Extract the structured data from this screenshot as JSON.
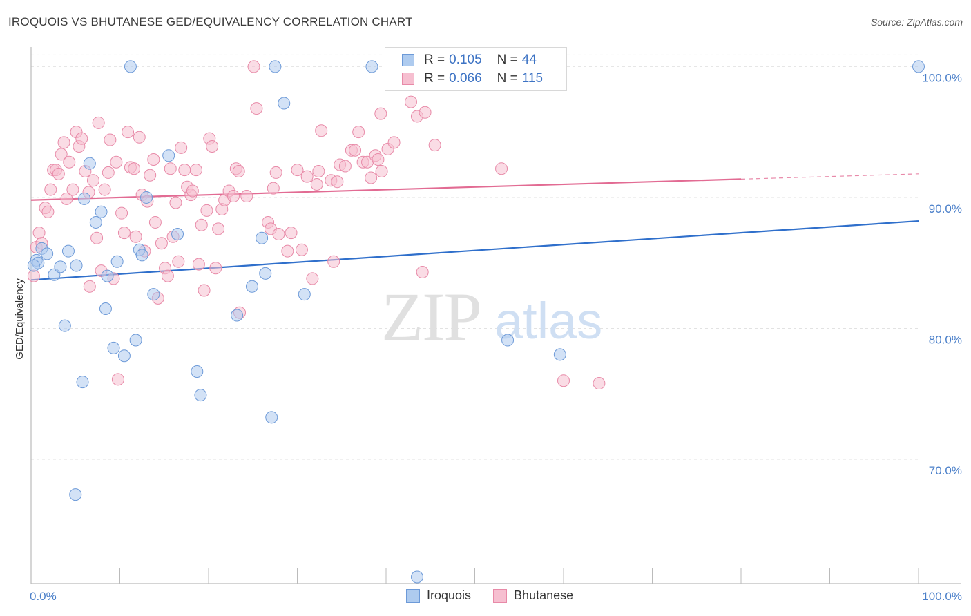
{
  "header": {
    "title": "IROQUOIS VS BHUTANESE GED/EQUIVALENCY CORRELATION CHART",
    "source": "Source: ZipAtlas.com"
  },
  "watermark": {
    "zip": "ZIP",
    "atlas": "atlas"
  },
  "legend": {
    "rows": [
      {
        "r_label": "R =",
        "r_value": "0.105",
        "n_label": "N =",
        "n_value": "44"
      },
      {
        "r_label": "R =",
        "r_value": "0.066",
        "n_label": "N =",
        "n_value": "115"
      }
    ]
  },
  "bottom_legend": {
    "items": [
      "Iroquois",
      "Bhutanese"
    ]
  },
  "colors": {
    "iroquois_fill": "#aecbef",
    "iroquois_stroke": "#6d9ad8",
    "iroquois_line": "#2f6fcb",
    "bhutanese_fill": "#f6bfd0",
    "bhutanese_stroke": "#e88aa8",
    "bhutanese_line": "#e26b93",
    "tick_text": "#4a7fc9",
    "grid": "#e2e2e2"
  },
  "chart_data": {
    "type": "scatter",
    "title": "IROQUOIS VS BHUTANESE GED/EQUIVALENCY CORRELATION CHART",
    "xlabel": "",
    "ylabel": "GED/Equivalency",
    "xlim": [
      0,
      100
    ],
    "ylim": [
      60.5,
      101.5
    ],
    "x_tick_labels": [
      "0.0%",
      "100.0%"
    ],
    "y_ticks": [
      70,
      80,
      90,
      100
    ],
    "y_tick_labels": [
      "70.0%",
      "80.0%",
      "90.0%",
      "100.0%"
    ],
    "legend_position": "top-center",
    "series": [
      {
        "name": "Iroquois",
        "r": 0.105,
        "n": 44,
        "trend": {
          "x": [
            0,
            100
          ],
          "y": [
            83.7,
            88.2
          ]
        },
        "points": [
          {
            "x": 0.6,
            "y": 85.2
          },
          {
            "x": 0.8,
            "y": 85.0
          },
          {
            "x": 1.2,
            "y": 86.1
          },
          {
            "x": 1.8,
            "y": 85.7
          },
          {
            "x": 2.6,
            "y": 84.1
          },
          {
            "x": 3.3,
            "y": 84.7
          },
          {
            "x": 3.8,
            "y": 80.2
          },
          {
            "x": 4.2,
            "y": 85.9
          },
          {
            "x": 5.1,
            "y": 84.8
          },
          {
            "x": 5.0,
            "y": 67.3
          },
          {
            "x": 5.8,
            "y": 75.9
          },
          {
            "x": 6.0,
            "y": 89.9
          },
          {
            "x": 6.6,
            "y": 92.6
          },
          {
            "x": 7.3,
            "y": 88.1
          },
          {
            "x": 7.9,
            "y": 88.9
          },
          {
            "x": 8.4,
            "y": 81.5
          },
          {
            "x": 8.6,
            "y": 84.0
          },
          {
            "x": 9.3,
            "y": 78.5
          },
          {
            "x": 9.7,
            "y": 85.1
          },
          {
            "x": 10.5,
            "y": 77.9
          },
          {
            "x": 11.2,
            "y": 100.0
          },
          {
            "x": 11.8,
            "y": 79.1
          },
          {
            "x": 12.2,
            "y": 86.0
          },
          {
            "x": 12.5,
            "y": 85.6
          },
          {
            "x": 13.0,
            "y": 90.0
          },
          {
            "x": 13.8,
            "y": 82.6
          },
          {
            "x": 15.5,
            "y": 93.2
          },
          {
            "x": 16.5,
            "y": 87.2
          },
          {
            "x": 18.7,
            "y": 76.7
          },
          {
            "x": 19.1,
            "y": 74.9
          },
          {
            "x": 23.2,
            "y": 81.0
          },
          {
            "x": 24.9,
            "y": 83.2
          },
          {
            "x": 26.0,
            "y": 86.9
          },
          {
            "x": 26.4,
            "y": 84.2
          },
          {
            "x": 27.1,
            "y": 73.2
          },
          {
            "x": 27.5,
            "y": 100.0
          },
          {
            "x": 28.5,
            "y": 97.2
          },
          {
            "x": 30.8,
            "y": 82.6
          },
          {
            "x": 38.4,
            "y": 100.0
          },
          {
            "x": 43.5,
            "y": 61.0
          },
          {
            "x": 53.7,
            "y": 79.1
          },
          {
            "x": 59.6,
            "y": 78.0
          },
          {
            "x": 100.0,
            "y": 100.0
          },
          {
            "x": 0.3,
            "y": 84.8
          }
        ]
      },
      {
        "name": "Bhutanese",
        "r": 0.066,
        "n": 115,
        "trend": {
          "x": [
            0,
            80
          ],
          "y": [
            89.8,
            91.4
          ]
        },
        "trend_dashed": {
          "x": [
            80,
            100
          ],
          "y": [
            91.4,
            91.8
          ]
        },
        "points": [
          {
            "x": 0.3,
            "y": 84.0
          },
          {
            "x": 0.6,
            "y": 86.2
          },
          {
            "x": 0.9,
            "y": 87.3
          },
          {
            "x": 1.2,
            "y": 86.5
          },
          {
            "x": 1.6,
            "y": 89.2
          },
          {
            "x": 1.9,
            "y": 88.9
          },
          {
            "x": 2.2,
            "y": 90.6
          },
          {
            "x": 2.5,
            "y": 92.1
          },
          {
            "x": 2.8,
            "y": 92.1
          },
          {
            "x": 3.1,
            "y": 91.8
          },
          {
            "x": 3.4,
            "y": 93.3
          },
          {
            "x": 3.7,
            "y": 94.2
          },
          {
            "x": 4.0,
            "y": 89.9
          },
          {
            "x": 4.3,
            "y": 92.7
          },
          {
            "x": 4.7,
            "y": 90.6
          },
          {
            "x": 5.1,
            "y": 95.0
          },
          {
            "x": 5.4,
            "y": 93.9
          },
          {
            "x": 5.7,
            "y": 94.5
          },
          {
            "x": 6.1,
            "y": 92.0
          },
          {
            "x": 6.5,
            "y": 90.4
          },
          {
            "x": 6.6,
            "y": 83.2
          },
          {
            "x": 7.0,
            "y": 91.3
          },
          {
            "x": 7.4,
            "y": 86.9
          },
          {
            "x": 7.6,
            "y": 95.7
          },
          {
            "x": 7.9,
            "y": 84.4
          },
          {
            "x": 8.3,
            "y": 90.6
          },
          {
            "x": 8.7,
            "y": 91.9
          },
          {
            "x": 8.9,
            "y": 94.4
          },
          {
            "x": 9.3,
            "y": 83.8
          },
          {
            "x": 9.6,
            "y": 92.7
          },
          {
            "x": 9.8,
            "y": 76.1
          },
          {
            "x": 10.2,
            "y": 88.8
          },
          {
            "x": 10.5,
            "y": 87.3
          },
          {
            "x": 10.9,
            "y": 95.0
          },
          {
            "x": 11.2,
            "y": 92.3
          },
          {
            "x": 11.6,
            "y": 92.2
          },
          {
            "x": 11.8,
            "y": 87.0
          },
          {
            "x": 12.2,
            "y": 94.6
          },
          {
            "x": 12.5,
            "y": 90.2
          },
          {
            "x": 12.8,
            "y": 85.9
          },
          {
            "x": 13.1,
            "y": 89.7
          },
          {
            "x": 13.4,
            "y": 91.7
          },
          {
            "x": 13.8,
            "y": 92.9
          },
          {
            "x": 14.0,
            "y": 88.1
          },
          {
            "x": 14.3,
            "y": 82.3
          },
          {
            "x": 14.7,
            "y": 86.5
          },
          {
            "x": 15.1,
            "y": 84.6
          },
          {
            "x": 15.4,
            "y": 84.0
          },
          {
            "x": 15.7,
            "y": 92.2
          },
          {
            "x": 16.0,
            "y": 87.0
          },
          {
            "x": 16.3,
            "y": 89.6
          },
          {
            "x": 16.6,
            "y": 85.1
          },
          {
            "x": 16.9,
            "y": 93.8
          },
          {
            "x": 17.3,
            "y": 92.1
          },
          {
            "x": 17.6,
            "y": 90.8
          },
          {
            "x": 18.0,
            "y": 90.2
          },
          {
            "x": 18.2,
            "y": 90.5
          },
          {
            "x": 18.6,
            "y": 92.1
          },
          {
            "x": 18.9,
            "y": 84.9
          },
          {
            "x": 19.2,
            "y": 87.9
          },
          {
            "x": 19.5,
            "y": 82.9
          },
          {
            "x": 19.8,
            "y": 89.0
          },
          {
            "x": 20.1,
            "y": 94.5
          },
          {
            "x": 20.4,
            "y": 93.9
          },
          {
            "x": 20.8,
            "y": 84.6
          },
          {
            "x": 21.1,
            "y": 87.6
          },
          {
            "x": 21.5,
            "y": 89.1
          },
          {
            "x": 21.8,
            "y": 89.8
          },
          {
            "x": 22.3,
            "y": 90.5
          },
          {
            "x": 22.8,
            "y": 90.1
          },
          {
            "x": 23.1,
            "y": 92.2
          },
          {
            "x": 23.4,
            "y": 92.0
          },
          {
            "x": 23.5,
            "y": 81.2
          },
          {
            "x": 24.3,
            "y": 90.1
          },
          {
            "x": 25.1,
            "y": 100.0
          },
          {
            "x": 25.4,
            "y": 96.8
          },
          {
            "x": 26.7,
            "y": 88.1
          },
          {
            "x": 27.0,
            "y": 87.6
          },
          {
            "x": 27.3,
            "y": 90.7
          },
          {
            "x": 27.6,
            "y": 91.9
          },
          {
            "x": 27.9,
            "y": 87.2
          },
          {
            "x": 28.9,
            "y": 85.9
          },
          {
            "x": 29.3,
            "y": 87.3
          },
          {
            "x": 30.0,
            "y": 92.1
          },
          {
            "x": 30.5,
            "y": 86.0
          },
          {
            "x": 31.1,
            "y": 91.6
          },
          {
            "x": 31.7,
            "y": 83.8
          },
          {
            "x": 32.2,
            "y": 91.0
          },
          {
            "x": 32.4,
            "y": 92.0
          },
          {
            "x": 32.7,
            "y": 95.1
          },
          {
            "x": 33.8,
            "y": 91.3
          },
          {
            "x": 34.1,
            "y": 85.1
          },
          {
            "x": 34.5,
            "y": 91.2
          },
          {
            "x": 34.8,
            "y": 92.5
          },
          {
            "x": 35.4,
            "y": 92.4
          },
          {
            "x": 36.1,
            "y": 93.6
          },
          {
            "x": 36.5,
            "y": 93.6
          },
          {
            "x": 36.9,
            "y": 95.0
          },
          {
            "x": 37.4,
            "y": 92.7
          },
          {
            "x": 37.9,
            "y": 92.7
          },
          {
            "x": 38.3,
            "y": 91.5
          },
          {
            "x": 38.8,
            "y": 93.2
          },
          {
            "x": 39.1,
            "y": 92.9
          },
          {
            "x": 39.4,
            "y": 96.4
          },
          {
            "x": 39.5,
            "y": 92.0
          },
          {
            "x": 40.2,
            "y": 93.7
          },
          {
            "x": 40.9,
            "y": 94.2
          },
          {
            "x": 42.8,
            "y": 97.3
          },
          {
            "x": 43.5,
            "y": 96.2
          },
          {
            "x": 44.1,
            "y": 84.3
          },
          {
            "x": 44.4,
            "y": 96.5
          },
          {
            "x": 45.5,
            "y": 94.0
          },
          {
            "x": 53.0,
            "y": 92.2
          },
          {
            "x": 60.0,
            "y": 76.0
          },
          {
            "x": 64.0,
            "y": 75.8
          }
        ]
      }
    ]
  }
}
